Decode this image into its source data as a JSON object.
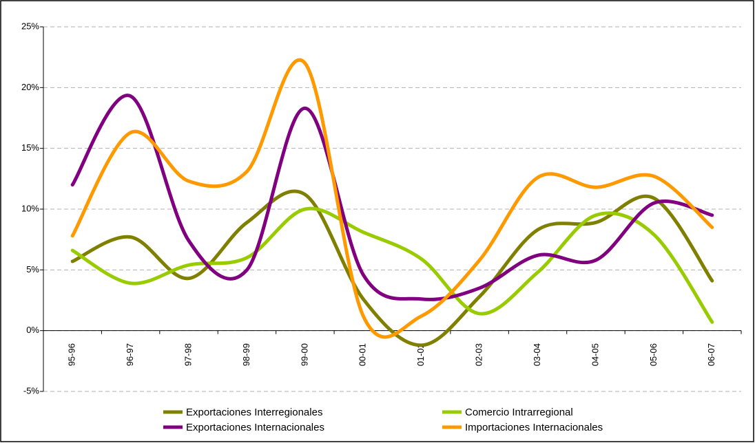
{
  "chart_data": {
    "type": "line",
    "categories": [
      "95-96",
      "96-97",
      "97-98",
      "98-99",
      "99-00",
      "00-01",
      "01-02",
      "02-03",
      "03-04",
      "04-05",
      "05-06",
      "06-07"
    ],
    "series": [
      {
        "name": "Exportaciones Interregionales",
        "color": "#7f7f00",
        "values": [
          5.7,
          7.7,
          4.3,
          8.9,
          11.2,
          2.6,
          -1.2,
          2.8,
          8.3,
          8.9,
          10.9,
          4.1
        ]
      },
      {
        "name": "Comercio Intrarregional",
        "color": "#99cc00",
        "values": [
          6.6,
          3.9,
          5.4,
          6.0,
          10.0,
          8.1,
          5.9,
          1.4,
          4.8,
          9.5,
          7.9,
          0.7
        ]
      },
      {
        "name": "Exportaciones Internacionales",
        "color": "#800080",
        "values": [
          12.0,
          19.3,
          7.4,
          5.0,
          18.3,
          4.6,
          2.6,
          3.5,
          6.2,
          5.8,
          10.5,
          9.5
        ]
      },
      {
        "name": "Importaciones Internacionales",
        "color": "#ff9900",
        "values": [
          7.8,
          16.3,
          12.3,
          13.1,
          22.0,
          1.2,
          1.2,
          5.8,
          12.6,
          11.8,
          12.7,
          8.5
        ]
      }
    ],
    "ylim": [
      -5,
      25
    ],
    "yticks": [
      {
        "value": -5,
        "label": "-5%"
      },
      {
        "value": 0,
        "label": "0%"
      },
      {
        "value": 5,
        "label": "5%"
      },
      {
        "value": 10,
        "label": "10%"
      },
      {
        "value": 15,
        "label": "15%"
      },
      {
        "value": 20,
        "label": "20%"
      },
      {
        "value": 25,
        "label": "25%"
      }
    ],
    "grid": true,
    "smooth": true
  }
}
